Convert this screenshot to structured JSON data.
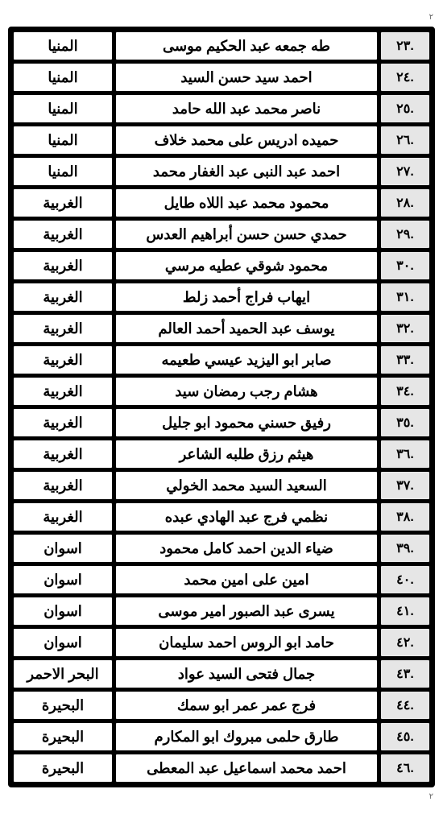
{
  "columns": {
    "number": "num",
    "name": "name",
    "governorate": "gov"
  },
  "rows": [
    {
      "num": ".٢٣",
      "name": "طه جمعه عبد الحكيم موسى",
      "gov": "المنيا"
    },
    {
      "num": ".٢٤",
      "name": "احمد سيد حسن السيد",
      "gov": "المنيا"
    },
    {
      "num": ".٢٥",
      "name": "ناصر محمد عبد الله حامد",
      "gov": "المنيا"
    },
    {
      "num": ".٢٦",
      "name": "حميده ادريس على محمد خلاف",
      "gov": "المنيا"
    },
    {
      "num": ".٢٧",
      "name": "احمد عبد النبى عبد الغفار محمد",
      "gov": "المنيا"
    },
    {
      "num": ".٢٨",
      "name": "محمود محمد عبد اللاه طايل",
      "gov": "الغربية"
    },
    {
      "num": ".٢٩",
      "name": "حمدي حسن حسن أبراهيم العدس",
      "gov": "الغربية"
    },
    {
      "num": ".٣٠",
      "name": "محمود شوقي عطيه مرسي",
      "gov": "الغربية"
    },
    {
      "num": ".٣١",
      "name": "ايهاب فراج أحمد زلط",
      "gov": "الغربية"
    },
    {
      "num": ".٣٢",
      "name": "يوسف عبد الحميد أحمد العالم",
      "gov": "الغربية"
    },
    {
      "num": ".٣٣",
      "name": "صابر ابو اليزيد عيسي طعيمه",
      "gov": "الغربية"
    },
    {
      "num": ".٣٤",
      "name": "هشام رجب رمضان سيد",
      "gov": "الغربية"
    },
    {
      "num": ".٣٥",
      "name": "رفيق حسني محمود ابو جليل",
      "gov": "الغربية"
    },
    {
      "num": ".٣٦",
      "name": "هيثم رزق طلبه الشاعر",
      "gov": "الغربية"
    },
    {
      "num": ".٣٧",
      "name": "السعيد السيد محمد الخولي",
      "gov": "الغربية"
    },
    {
      "num": ".٣٨",
      "name": "نظمي فرج عبد الهادي عبده",
      "gov": "الغربية"
    },
    {
      "num": ".٣٩",
      "name": "ضياء الدين احمد كامل محمود",
      "gov": "اسوان"
    },
    {
      "num": ".٤٠",
      "name": "امين على امين محمد",
      "gov": "اسوان"
    },
    {
      "num": ".٤١",
      "name": "يسرى عبد الصبور امير موسى",
      "gov": "اسوان"
    },
    {
      "num": ".٤٢",
      "name": "حامد ابو الروس احمد سليمان",
      "gov": "اسوان"
    },
    {
      "num": ".٤٣",
      "name": "جمال فتحى السيد عواد",
      "gov": "البحر الاحمر"
    },
    {
      "num": ".٤٤",
      "name": "فرج عمر عمر ابو سمك",
      "gov": "البحيرة"
    },
    {
      "num": ".٤٥",
      "name": "طارق حلمى مبروك ابو المكارم",
      "gov": "البحيرة"
    },
    {
      "num": ".٤٦",
      "name": "احمد محمد اسماعيل عبد المعطى",
      "gov": "البحيرة"
    }
  ],
  "page_mark": "٢"
}
